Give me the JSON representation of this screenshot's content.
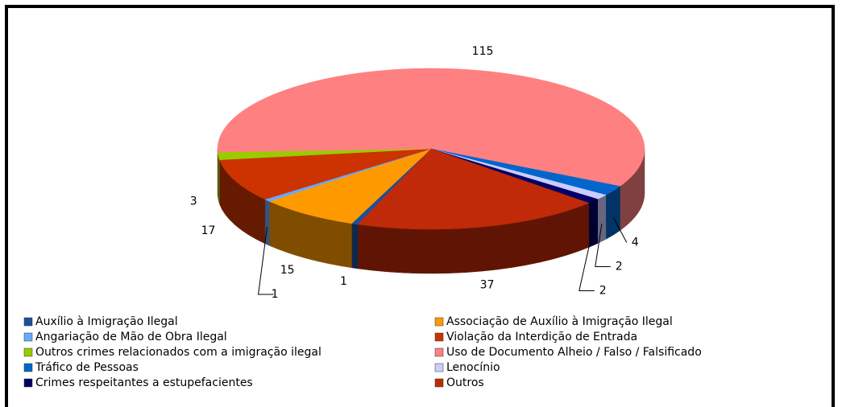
{
  "chart_data": {
    "type": "pie3d",
    "categories": [
      "Auxílio à Imigração Ilegal",
      "Associação de Auxílio à Imigração Ilegal",
      "Angariação de Mão de Obra Ilegal",
      "Violação da Interdição de Entrada",
      "Outros crimes relacionados com a imigração ilegal",
      "Uso de Documento Alheio / Falso / Falsificado",
      "Tráfico de Pessoas",
      "Lenocínio",
      "Crimes respeitantes a estupefacientes",
      "Outros"
    ],
    "values": [
      1,
      15,
      1,
      17,
      3,
      115,
      4,
      2,
      2,
      37
    ],
    "colors": [
      "#1f4f99",
      "#ff9900",
      "#66aaff",
      "#cc3300",
      "#99cc00",
      "#ff8080",
      "#0066cc",
      "#ccccff",
      "#000066",
      "#c02a08"
    ],
    "legend": "bottom"
  }
}
